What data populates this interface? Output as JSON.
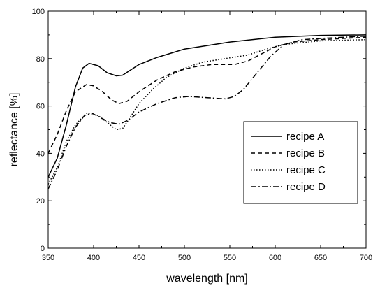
{
  "chart_data": {
    "type": "line",
    "title": "",
    "xlabel": "wavelength [nm]",
    "ylabel": "reflectance [%]",
    "xlim": [
      350,
      700
    ],
    "ylim": [
      0,
      100
    ],
    "x_ticks": [
      350,
      400,
      450,
      500,
      550,
      600,
      650,
      700
    ],
    "y_ticks": [
      0,
      20,
      40,
      60,
      80,
      100
    ],
    "grid": false,
    "legend_position": "right",
    "series": [
      {
        "name": "recipe A",
        "dash": "solid",
        "color": "#000000",
        "points": [
          [
            350,
            30
          ],
          [
            360,
            38
          ],
          [
            370,
            52
          ],
          [
            380,
            68
          ],
          [
            388,
            76
          ],
          [
            395,
            78
          ],
          [
            405,
            77
          ],
          [
            415,
            74
          ],
          [
            425,
            72.7
          ],
          [
            432,
            73
          ],
          [
            440,
            75
          ],
          [
            450,
            77.5
          ],
          [
            470,
            80.5
          ],
          [
            500,
            84
          ],
          [
            550,
            87
          ],
          [
            600,
            89
          ],
          [
            650,
            89.8
          ],
          [
            700,
            90
          ]
        ]
      },
      {
        "name": "recipe B",
        "dash": "dashed",
        "color": "#000000",
        "points": [
          [
            350,
            40
          ],
          [
            360,
            48
          ],
          [
            370,
            58
          ],
          [
            380,
            66
          ],
          [
            392,
            69
          ],
          [
            400,
            68.5
          ],
          [
            410,
            66
          ],
          [
            420,
            62.5
          ],
          [
            428,
            61
          ],
          [
            437,
            62
          ],
          [
            450,
            66
          ],
          [
            470,
            71
          ],
          [
            490,
            74.5
          ],
          [
            510,
            76.5
          ],
          [
            530,
            77.5
          ],
          [
            555,
            77.5
          ],
          [
            570,
            79
          ],
          [
            585,
            82
          ],
          [
            600,
            85
          ],
          [
            620,
            87
          ],
          [
            650,
            88
          ],
          [
            700,
            89
          ]
        ]
      },
      {
        "name": "recipe C",
        "dash": "dotted",
        "color": "#000000",
        "points": [
          [
            350,
            27
          ],
          [
            360,
            34
          ],
          [
            370,
            45
          ],
          [
            380,
            52
          ],
          [
            392,
            57
          ],
          [
            405,
            56
          ],
          [
            415,
            53
          ],
          [
            425,
            50
          ],
          [
            432,
            50.5
          ],
          [
            440,
            55
          ],
          [
            450,
            61
          ],
          [
            465,
            67
          ],
          [
            480,
            72
          ],
          [
            500,
            76
          ],
          [
            520,
            78.5
          ],
          [
            545,
            80
          ],
          [
            570,
            81.5
          ],
          [
            590,
            84
          ],
          [
            610,
            86
          ],
          [
            650,
            87.5
          ],
          [
            700,
            88
          ]
        ]
      },
      {
        "name": "recipe D",
        "dash": "dashdot",
        "color": "#000000",
        "points": [
          [
            350,
            25
          ],
          [
            360,
            33
          ],
          [
            370,
            43
          ],
          [
            380,
            51
          ],
          [
            390,
            56
          ],
          [
            398,
            57
          ],
          [
            408,
            55
          ],
          [
            418,
            53
          ],
          [
            428,
            52.3
          ],
          [
            438,
            54
          ],
          [
            450,
            57.5
          ],
          [
            470,
            61
          ],
          [
            490,
            63.5
          ],
          [
            505,
            64
          ],
          [
            525,
            63.5
          ],
          [
            545,
            63
          ],
          [
            555,
            64
          ],
          [
            565,
            67
          ],
          [
            580,
            74
          ],
          [
            595,
            81
          ],
          [
            610,
            86
          ],
          [
            630,
            88
          ],
          [
            650,
            88.5
          ],
          [
            700,
            89.5
          ]
        ]
      }
    ]
  }
}
